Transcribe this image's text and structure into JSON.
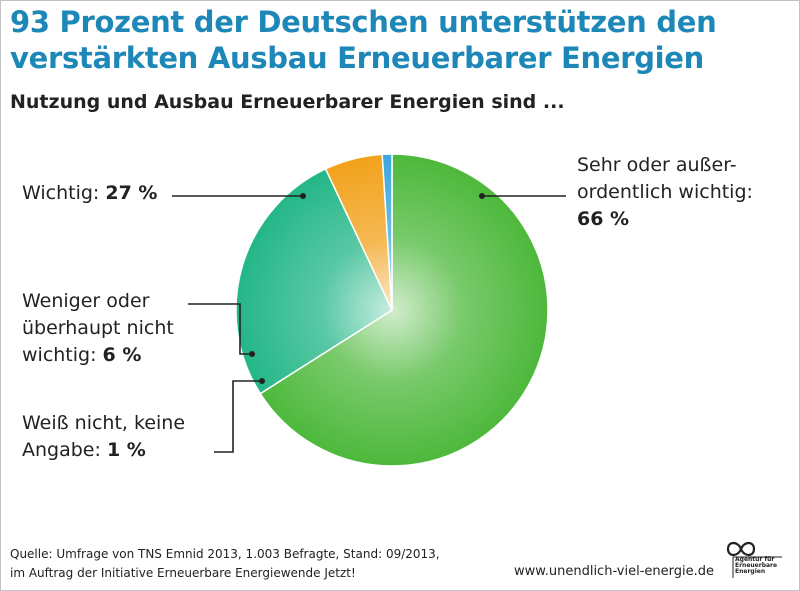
{
  "title": "93 Prozent der Deutschen unterstützen den verstärkten Ausbau Erneuerbarer Energien",
  "subtitle": "Nutzung und Ausbau Erneuerbarer Energien sind ...",
  "chart_data": {
    "type": "pie",
    "title": "93 Prozent der Deutschen unterstützen den verstärkten Ausbau Erneuerbarer Energien",
    "subtitle": "Nutzung und Ausbau Erneuerbarer Energien sind ...",
    "slices": [
      {
        "label": "Sehr oder außer-ordentlich wichtig",
        "value": 66,
        "value_label": "66 %",
        "color": "#4cb83a"
      },
      {
        "label": "Wichtig",
        "value": 27,
        "value_label": "27 %",
        "color": "#22b687"
      },
      {
        "label": "Weniger oder überhaupt nicht wichtig",
        "value": 6,
        "value_label": "6 %",
        "color": "#f2a11a"
      },
      {
        "label": "Weiß nicht, keine Angabe",
        "value": 1,
        "value_label": "1 %",
        "color": "#3aa7dc"
      }
    ],
    "start": "top",
    "direction": "clockwise",
    "labels": {
      "sehr": {
        "line1": "Sehr oder außer-",
        "line2": "ordentlich wichtig:",
        "value": "66 %"
      },
      "wichtig": {
        "text": "Wichtig: ",
        "value": "27 %"
      },
      "weniger": {
        "line1": "Weniger oder",
        "line2": "überhaupt nicht",
        "line3": "wichtig: ",
        "value": "6 %"
      },
      "weiss": {
        "line1": "Weiß nicht, keine",
        "line2": "Angabe: ",
        "value": "1 %"
      }
    }
  },
  "footer": {
    "source_line1": "Quelle: Umfrage von TNS Emnid 2013, 1.003 Befragte, Stand: 09/2013,",
    "source_line2": "im Auftrag der Initiative Erneuerbare Energiewende Jetzt!",
    "website": "www.unendlich-viel-energie.de",
    "logo_text": "Agentur für Erneuerbare Energien"
  }
}
